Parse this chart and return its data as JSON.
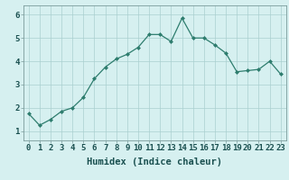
{
  "x": [
    0,
    1,
    2,
    3,
    4,
    5,
    6,
    7,
    8,
    9,
    10,
    11,
    12,
    13,
    14,
    15,
    16,
    17,
    18,
    19,
    20,
    21,
    22,
    23
  ],
  "y": [
    1.75,
    1.25,
    1.5,
    1.85,
    2.0,
    2.45,
    3.25,
    3.75,
    4.1,
    4.3,
    4.6,
    5.15,
    5.15,
    4.85,
    5.85,
    5.0,
    5.0,
    4.7,
    4.35,
    3.55,
    3.6,
    3.65,
    4.0,
    3.45
  ],
  "xlabel": "Humidex (Indice chaleur)",
  "ylim": [
    0.6,
    6.4
  ],
  "xlim": [
    -0.5,
    23.5
  ],
  "yticks": [
    1,
    2,
    3,
    4,
    5,
    6
  ],
  "xticks": [
    0,
    1,
    2,
    3,
    4,
    5,
    6,
    7,
    8,
    9,
    10,
    11,
    12,
    13,
    14,
    15,
    16,
    17,
    18,
    19,
    20,
    21,
    22,
    23
  ],
  "line_color": "#2e7d6e",
  "marker_color": "#2e7d6e",
  "bg_color": "#d6f0f0",
  "grid_color": "#aacfcf",
  "axis_label_fontsize": 7.5,
  "tick_fontsize": 6.5
}
